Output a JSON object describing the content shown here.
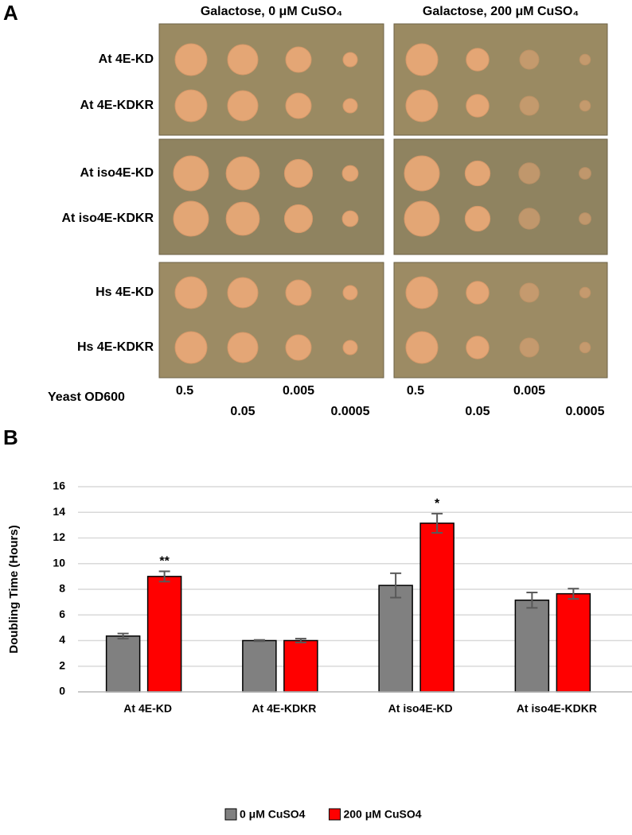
{
  "panel_a": {
    "label": "A",
    "columns": [
      "Galactose, 0 μM CuSO₄",
      "Galactose, 200 μM CuSO₄"
    ],
    "rows": [
      "At 4E-KD",
      "At 4E-KDKR",
      "At iso4E-KD",
      "At iso4E-KDKR",
      "Hs 4E-KD",
      "Hs 4E-KDKR"
    ],
    "od_label": "Yeast OD600",
    "dilutions": [
      "0.5",
      "0.05",
      "0.005",
      "0.0005"
    ]
  },
  "chart_data": {
    "type": "bar",
    "label": "B",
    "y_label": "Doubling Time (Hours)",
    "categories": [
      "At 4E-KD",
      "At 4E-KDKR",
      "At iso4E-KD",
      "At iso4E-KDKR"
    ],
    "series": [
      {
        "name": "0 μM CuSO4",
        "color": "#808080",
        "values": [
          4.35,
          4.0,
          8.3,
          7.15
        ],
        "errors": [
          0.2,
          0.05,
          0.95,
          0.6
        ]
      },
      {
        "name": "200 μM CuSO4",
        "color": "#ff0000",
        "values": [
          9.0,
          4.0,
          13.15,
          7.65
        ],
        "errors": [
          0.4,
          0.15,
          0.75,
          0.4
        ],
        "significance": [
          "**",
          null,
          "*",
          null
        ]
      }
    ],
    "ylim": [
      0,
      16
    ],
    "yticks": [
      0,
      2,
      4,
      6,
      8,
      10,
      12,
      14,
      16
    ],
    "grid": true,
    "legend": "bottom"
  }
}
